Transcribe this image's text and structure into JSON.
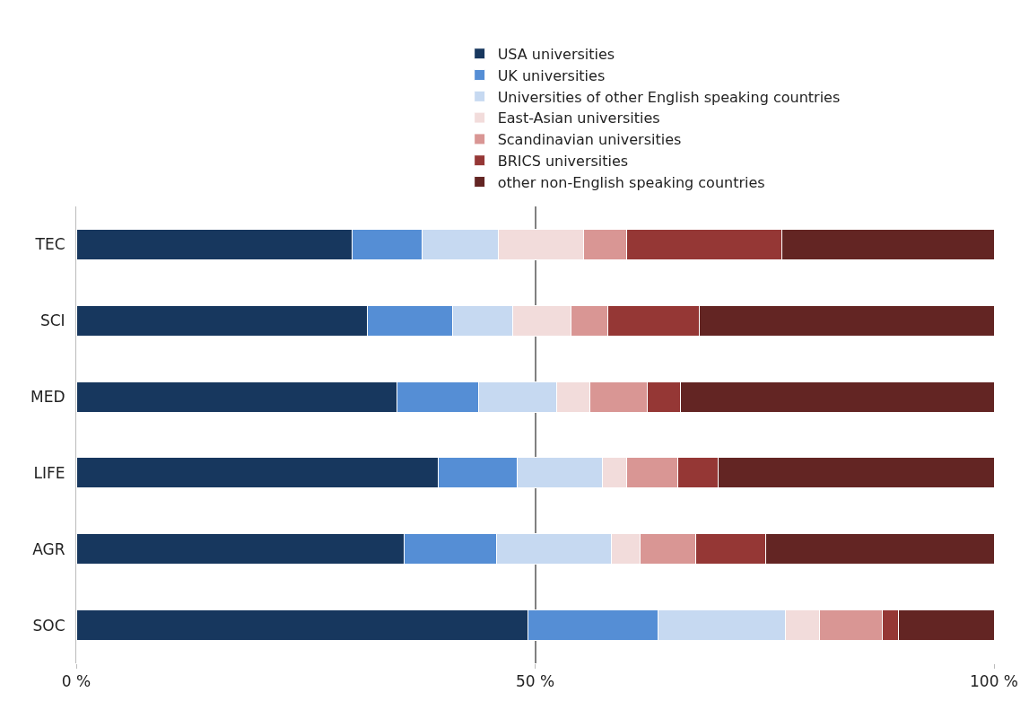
{
  "chart_data": {
    "type": "bar",
    "orientation": "horizontal",
    "stacked": true,
    "categories": [
      "TEC",
      "SCI",
      "MED",
      "LIFE",
      "AGR",
      "SOC"
    ],
    "series": [
      {
        "name": "USA universities",
        "color": "#17375e",
        "values": [
          30.1,
          31.7,
          34.9,
          39.4,
          35.7,
          49.2
        ]
      },
      {
        "name": "UK universities",
        "color": "#558ed5",
        "values": [
          7.6,
          9.3,
          8.9,
          8.6,
          10.1,
          14.2
        ]
      },
      {
        "name": "Universities of other English speaking countries",
        "color": "#c6d9f1",
        "values": [
          8.3,
          6.6,
          8.5,
          9.3,
          12.5,
          13.9
        ]
      },
      {
        "name": "East-Asian universities",
        "color": "#f2dcdb",
        "values": [
          9.3,
          6.3,
          3.7,
          2.7,
          3.1,
          3.7
        ]
      },
      {
        "name": "Scandinavian universities",
        "color": "#d99694",
        "values": [
          4.7,
          4.0,
          6.2,
          5.5,
          6.1,
          6.8
        ]
      },
      {
        "name": "BRICS universities",
        "color": "#953735",
        "values": [
          16.9,
          10.0,
          3.6,
          4.4,
          7.6,
          1.8
        ]
      },
      {
        "name": "other non-English speaking countries",
        "color": "#632523",
        "values": [
          23.1,
          32.1,
          34.2,
          30.1,
          24.9,
          10.4
        ]
      }
    ],
    "xlim": [
      0,
      100
    ],
    "xticks": [
      {
        "value": 0,
        "label": "0 %"
      },
      {
        "value": 50,
        "label": "50 %"
      },
      {
        "value": 100,
        "label": "100 %"
      }
    ],
    "grid": "x",
    "legend": "top"
  }
}
